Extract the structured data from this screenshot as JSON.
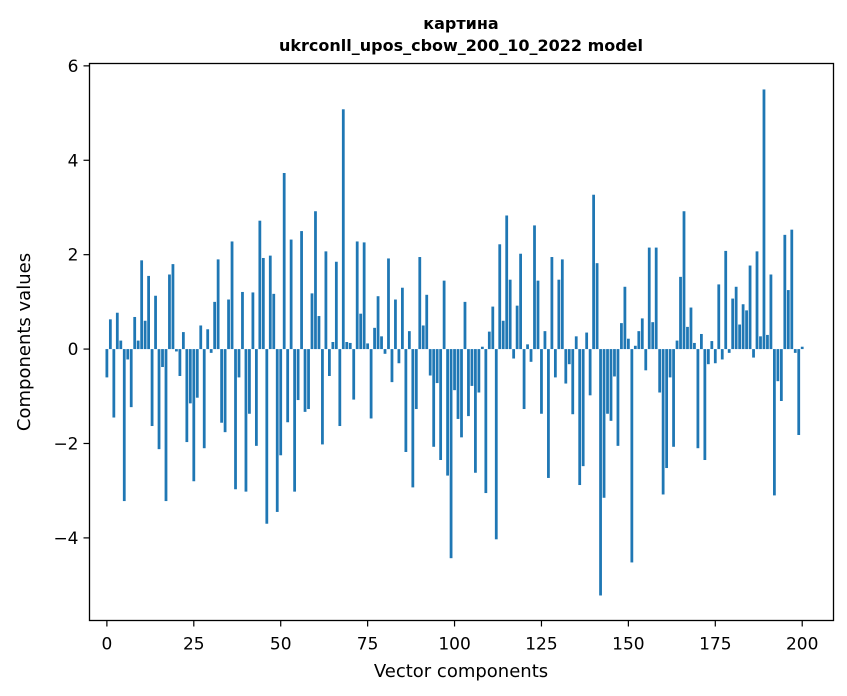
{
  "chart_data": {
    "type": "bar",
    "title": "картина",
    "subtitle": "ukrconll_upos_cbow_200_10_2022 model",
    "xlabel": "Vector components",
    "ylabel": "Components values",
    "xlim": [
      -5,
      209
    ],
    "ylim": [
      -5.75,
      6.05
    ],
    "xticks": [
      0,
      25,
      50,
      75,
      100,
      125,
      150,
      175,
      200
    ],
    "yticks": [
      -4,
      -2,
      0,
      2,
      4,
      6
    ],
    "ytick_labels": [
      "−4",
      "−2",
      "0",
      "2",
      "4",
      "6"
    ],
    "grid": false,
    "color": "#1f77b4",
    "values": [
      -0.6,
      0.63,
      -1.45,
      0.77,
      0.18,
      -3.22,
      -0.22,
      -1.23,
      0.68,
      0.18,
      1.88,
      0.6,
      1.55,
      -1.63,
      1.13,
      -2.12,
      -0.38,
      -3.22,
      1.58,
      1.8,
      -0.05,
      -0.57,
      0.36,
      -1.97,
      -1.15,
      -2.8,
      -1.03,
      0.5,
      -2.1,
      0.42,
      -0.08,
      1.0,
      1.9,
      -1.56,
      -1.76,
      1.05,
      2.28,
      -2.97,
      -0.6,
      1.21,
      -3.02,
      -1.37,
      1.2,
      -2.05,
      2.72,
      1.93,
      -3.7,
      1.98,
      1.17,
      -3.45,
      -2.25,
      3.73,
      -1.55,
      2.32,
      -3.02,
      -1.08,
      2.5,
      -1.33,
      -1.27,
      1.18,
      2.92,
      0.7,
      -2.02,
      2.07,
      -0.57,
      0.15,
      1.85,
      -1.63,
      5.08,
      0.15,
      0.13,
      -1.07,
      2.28,
      0.75,
      2.26,
      0.12,
      -1.47,
      0.45,
      1.12,
      0.27,
      -0.1,
      1.92,
      -0.7,
      1.05,
      -0.3,
      1.3,
      -2.18,
      0.38,
      -2.93,
      -1.27,
      1.95,
      0.5,
      1.15,
      -0.56,
      -2.07,
      -0.72,
      -2.35,
      1.45,
      -2.68,
      -4.43,
      -0.87,
      -1.48,
      -1.87,
      1.0,
      -1.42,
      -0.78,
      -2.62,
      -0.92,
      0.05,
      -3.05,
      0.37,
      0.9,
      -4.03,
      2.22,
      0.6,
      2.83,
      1.47,
      -0.2,
      0.92,
      2.02,
      -1.27,
      0.1,
      -0.27,
      2.62,
      1.45,
      -1.37,
      0.38,
      -2.73,
      1.95,
      -0.6,
      1.47,
      1.9,
      -0.73,
      -0.32,
      -1.38,
      0.27,
      -2.88,
      -2.48,
      0.35,
      -0.98,
      3.27,
      1.82,
      -5.22,
      -3.15,
      -1.37,
      -1.52,
      -0.58,
      -2.05,
      0.55,
      1.32,
      0.22,
      -4.52,
      0.07,
      0.38,
      0.65,
      -0.45,
      2.15,
      0.57,
      2.15,
      -0.92,
      -3.08,
      -2.52,
      -0.6,
      -2.07,
      0.18,
      1.53,
      2.92,
      0.47,
      0.88,
      0.13,
      -2.1,
      0.32,
      -2.35,
      -0.32,
      0.17,
      -0.3,
      1.37,
      -0.22,
      2.08,
      -0.08,
      1.07,
      1.32,
      0.52,
      0.95,
      0.82,
      1.77,
      -0.18,
      2.07,
      0.27,
      5.5,
      0.3,
      1.58,
      -3.1,
      -0.68,
      -1.1,
      2.42,
      1.25,
      2.53,
      -0.08,
      -1.82,
      0.05
    ]
  }
}
